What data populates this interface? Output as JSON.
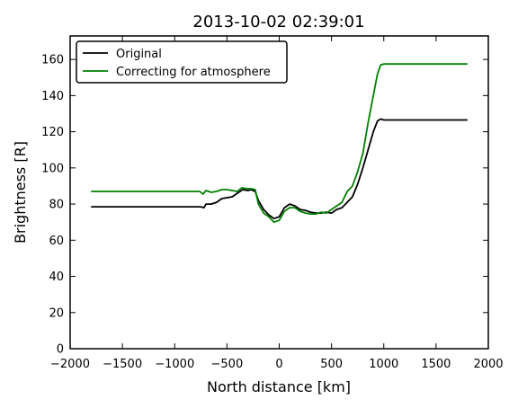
{
  "chart_data": {
    "type": "line",
    "title": "2013-10-02 02:39:01",
    "xlabel": "North distance [km]",
    "ylabel": "Brightness [R]",
    "xlim": [
      -2000,
      2000
    ],
    "ylim": [
      0,
      173
    ],
    "xticks": [
      -2000,
      -1500,
      -1000,
      -500,
      0,
      500,
      1000,
      1500,
      2000
    ],
    "yticks": [
      0,
      20,
      40,
      60,
      80,
      100,
      120,
      140,
      160
    ],
    "grid": false,
    "legend_position": "top-left",
    "series": [
      {
        "name": "Original",
        "color": "#000000",
        "x": [
          -1800,
          -750,
          -720,
          -700,
          -650,
          -600,
          -550,
          -500,
          -450,
          -400,
          -350,
          -300,
          -270,
          -230,
          -200,
          -150,
          -100,
          -50,
          0,
          50,
          100,
          150,
          200,
          250,
          300,
          350,
          400,
          450,
          500,
          550,
          600,
          650,
          700,
          750,
          800,
          850,
          900,
          940,
          970,
          1000,
          1100,
          1800
        ],
        "y": [
          78.5,
          78.5,
          78,
          80,
          80,
          81,
          83,
          83.5,
          84,
          86,
          88,
          87.5,
          88,
          87,
          82,
          77,
          74,
          72,
          73,
          78,
          80,
          79,
          77,
          76.5,
          75.5,
          75,
          75,
          75.5,
          75,
          77,
          78,
          81,
          84,
          91,
          100,
          110,
          120,
          126,
          127,
          126.5,
          126.5,
          126.5
        ]
      },
      {
        "name": "Correcting for atmosphere",
        "color": "#008000",
        "x": [
          -1800,
          -760,
          -730,
          -700,
          -650,
          -600,
          -550,
          -500,
          -450,
          -400,
          -360,
          -300,
          -270,
          -230,
          -200,
          -150,
          -100,
          -50,
          0,
          50,
          100,
          150,
          200,
          250,
          300,
          350,
          400,
          450,
          500,
          550,
          600,
          650,
          700,
          750,
          800,
          850,
          900,
          940,
          970,
          1000,
          1100,
          1800
        ],
        "y": [
          87,
          87,
          85.5,
          87.5,
          86.5,
          87,
          88,
          88,
          87.5,
          87,
          89,
          88.5,
          88.5,
          88,
          80,
          75,
          73,
          70,
          71,
          76,
          78,
          78,
          76,
          75,
          74.5,
          74.5,
          75.5,
          75,
          77,
          79,
          81,
          87,
          90,
          98,
          108,
          125,
          140,
          152,
          157,
          157.5,
          157.5,
          157.5
        ]
      }
    ]
  }
}
